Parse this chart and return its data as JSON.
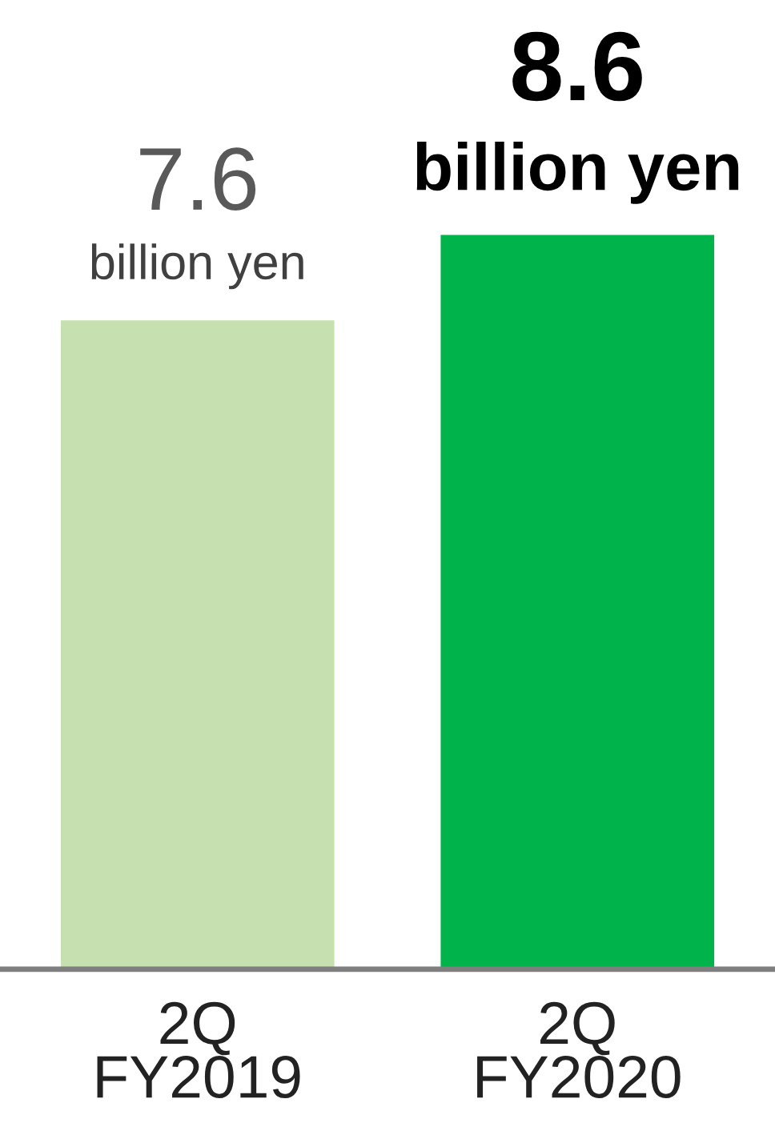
{
  "chart_data": {
    "type": "bar",
    "categories": [
      "2Q\nFY2019",
      "2Q\nFY2020"
    ],
    "values": [
      7.6,
      8.6
    ],
    "colors": [
      "#c6e0b0",
      "#00b44b"
    ],
    "data_labels": true,
    "annotations": [
      {
        "text": "billion yen",
        "x": "2Q\nFY2019",
        "y": 7.6
      },
      {
        "text": "billion yen",
        "x": "2Q\nFY2020",
        "y": 8.6
      }
    ],
    "grid": false,
    "legend": false
  }
}
